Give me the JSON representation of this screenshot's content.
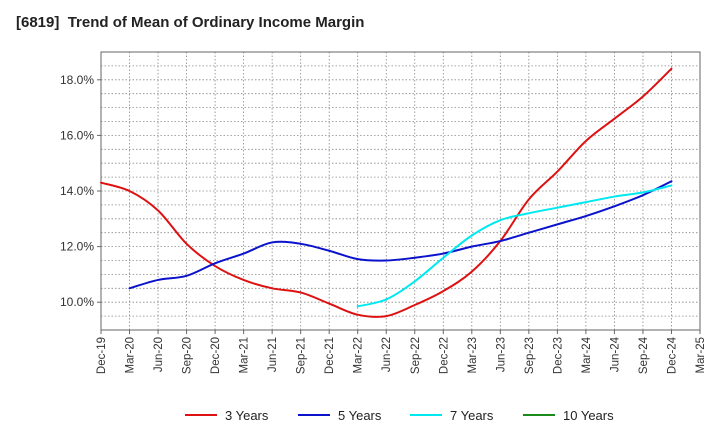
{
  "chart_data": {
    "type": "line",
    "title": "[6819]  Trend of Mean of Ordinary Income Margin",
    "xlabel": "",
    "ylabel": "",
    "x": [
      "Dec-19",
      "Mar-20",
      "Jun-20",
      "Sep-20",
      "Dec-20",
      "Mar-21",
      "Jun-21",
      "Sep-21",
      "Dec-21",
      "Mar-22",
      "Jun-22",
      "Sep-22",
      "Dec-22",
      "Mar-23",
      "Jun-23",
      "Sep-23",
      "Dec-23",
      "Mar-24",
      "Jun-24",
      "Sep-24",
      "Dec-24",
      "Mar-25"
    ],
    "ylim": [
      9.0,
      19.0
    ],
    "yticks": [
      10.0,
      12.0,
      14.0,
      16.0,
      18.0
    ],
    "ytick_labels": [
      "10.0%",
      "12.0%",
      "14.0%",
      "16.0%",
      "18.0%"
    ],
    "grid": true,
    "legend_position": "bottom",
    "series": [
      {
        "name": "3 Years",
        "color": "#dd1111",
        "values": [
          14.3,
          14.0,
          13.3,
          12.1,
          11.3,
          10.8,
          10.5,
          10.35,
          9.95,
          9.55,
          9.5,
          9.9,
          10.4,
          11.1,
          12.2,
          13.7,
          14.7,
          15.8,
          16.6,
          17.4,
          18.4,
          null
        ]
      },
      {
        "name": "5 Years",
        "color": "#0a12cc",
        "values": [
          null,
          10.5,
          10.8,
          10.95,
          11.4,
          11.75,
          12.15,
          12.1,
          11.85,
          11.55,
          11.5,
          11.6,
          11.75,
          12.0,
          12.2,
          12.5,
          12.8,
          13.1,
          13.45,
          13.85,
          14.35,
          null
        ]
      },
      {
        "name": "7 Years",
        "color": "#00e8f0",
        "values": [
          null,
          null,
          null,
          null,
          null,
          null,
          null,
          null,
          null,
          9.85,
          10.1,
          10.75,
          11.6,
          12.4,
          12.95,
          13.2,
          13.4,
          13.6,
          13.8,
          13.95,
          14.2,
          null
        ]
      },
      {
        "name": "10 Years",
        "color": "#1a8a1a",
        "values": [
          null,
          null,
          null,
          null,
          null,
          null,
          null,
          null,
          null,
          null,
          null,
          null,
          null,
          null,
          null,
          null,
          null,
          null,
          null,
          null,
          null,
          null
        ]
      }
    ]
  }
}
